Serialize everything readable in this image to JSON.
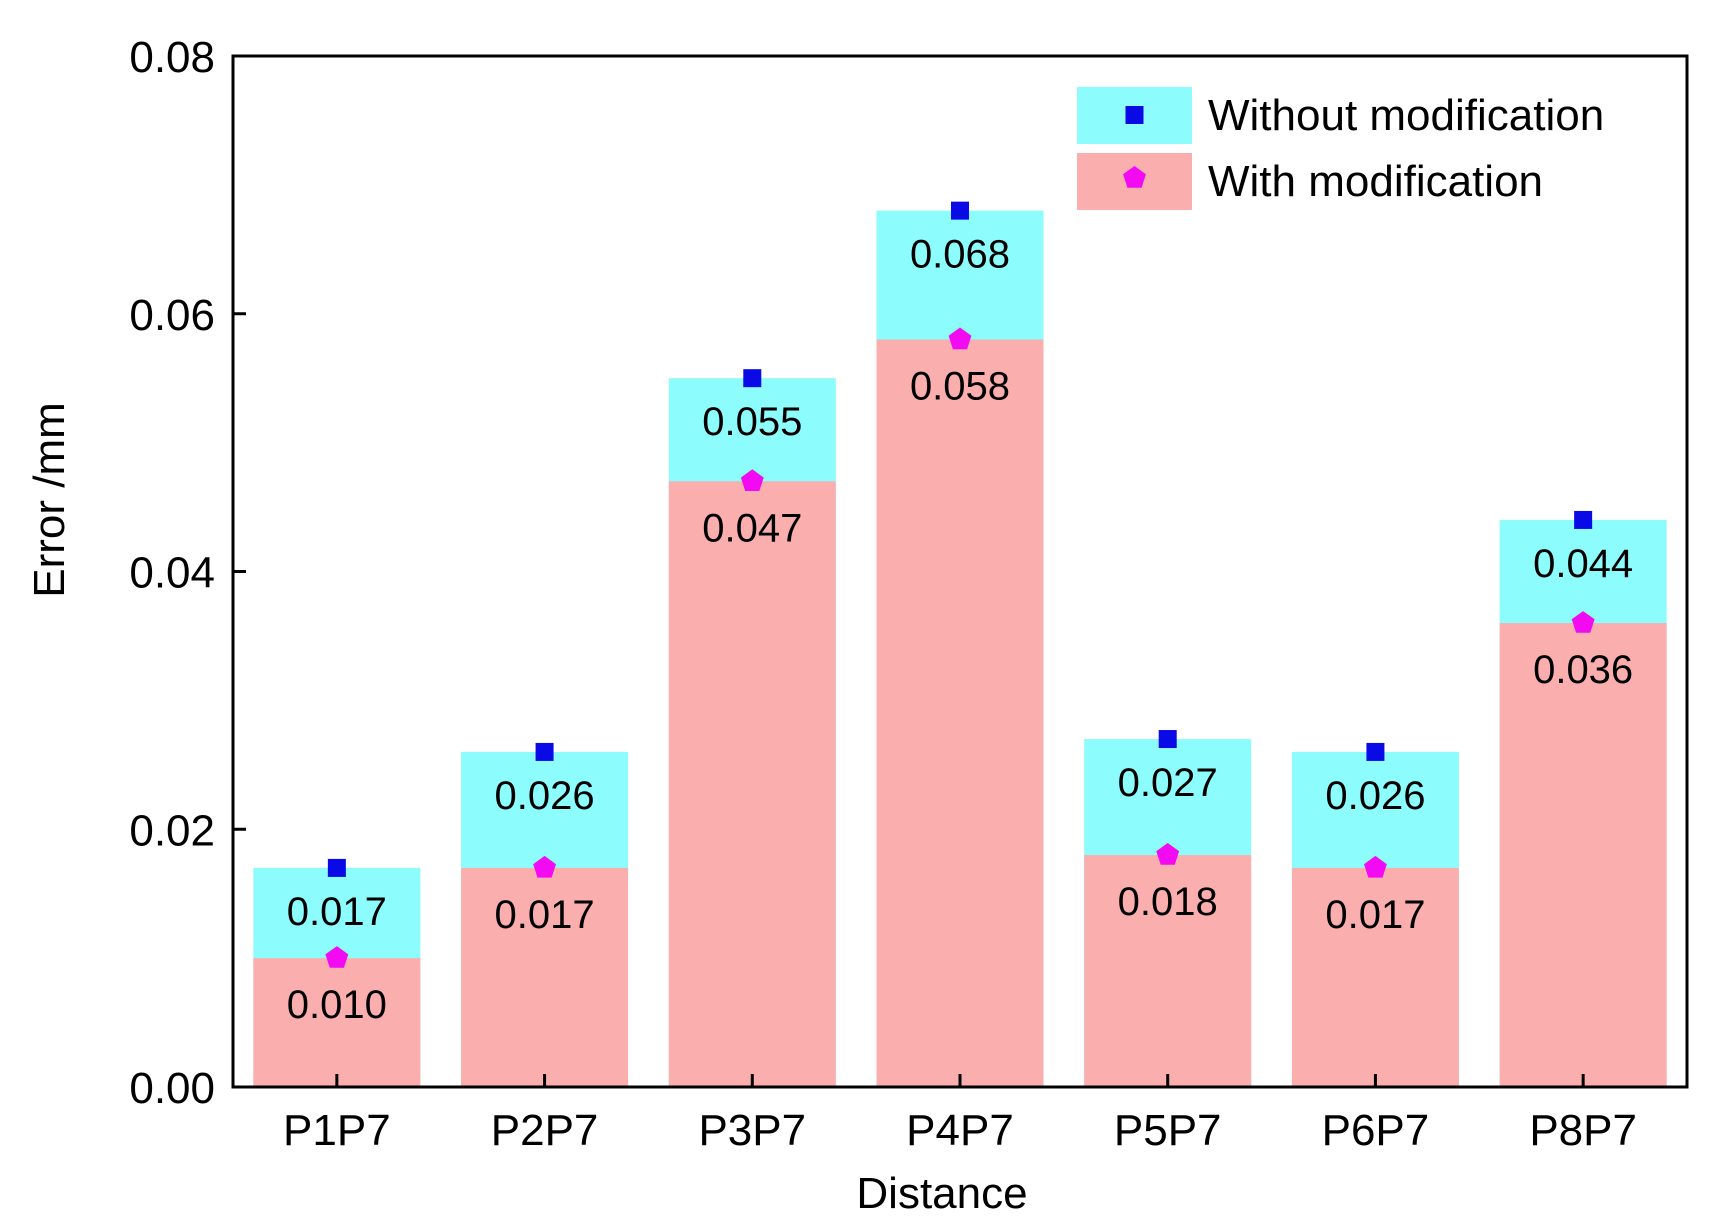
{
  "chart_data": {
    "type": "bar",
    "title": "",
    "xlabel": "Distance",
    "ylabel": "Error /mm",
    "ylim": [
      0,
      0.08
    ],
    "yticks": [
      "0.00",
      "0.02",
      "0.04",
      "0.06",
      "0.08"
    ],
    "categories": [
      "P1P7",
      "P2P7",
      "P3P7",
      "P4P7",
      "P5P7",
      "P6P7",
      "P8P7"
    ],
    "series": [
      {
        "name": "Without modification",
        "values": [
          0.017,
          0.026,
          0.055,
          0.068,
          0.027,
          0.026,
          0.044
        ],
        "labels": [
          "0.017",
          "0.026",
          "0.055",
          "0.068",
          "0.027",
          "0.026",
          "0.044"
        ],
        "bar_color": "#8cfcfc",
        "marker": "square",
        "marker_color": "#0a0ae6"
      },
      {
        "name": "With modification",
        "values": [
          0.01,
          0.017,
          0.047,
          0.058,
          0.018,
          0.017,
          0.036
        ],
        "labels": [
          "0.010",
          "0.017",
          "0.047",
          "0.058",
          "0.018",
          "0.017",
          "0.036"
        ],
        "bar_color": "#fbaeae",
        "marker": "pentagon",
        "marker_color": "#f20af2"
      }
    ],
    "grid": false,
    "legend_position": "top-right"
  }
}
